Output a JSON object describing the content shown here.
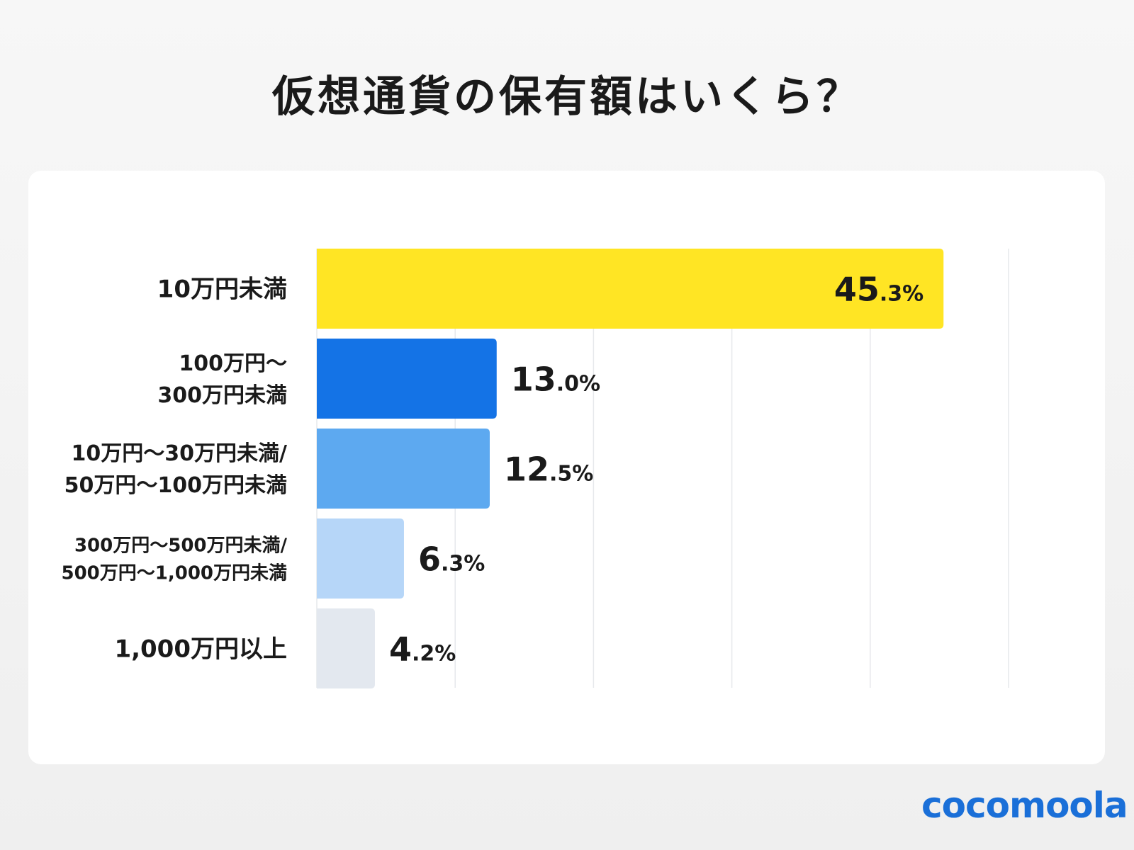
{
  "title": "仮想通貨の保有額はいくら？",
  "logo": "cocomoola",
  "chart_data": {
    "type": "bar",
    "orientation": "horizontal",
    "title": "仮想通貨の保有額はいくら？",
    "categories": [
      [
        "10万円未満"
      ],
      [
        "100万円〜",
        "300万円未満"
      ],
      [
        "10万円〜30万円未満/",
        "50万円〜100万円未満"
      ],
      [
        "300万円〜500万円未満/",
        "500万円〜1,000万円未満"
      ],
      [
        "1,000万円以上"
      ]
    ],
    "values": [
      45.3,
      13.0,
      12.5,
      6.3,
      4.2
    ],
    "value_labels": [
      [
        "45",
        ".3%"
      ],
      [
        "13",
        ".0%"
      ],
      [
        "12",
        ".5%"
      ],
      [
        "6",
        ".3%"
      ],
      [
        "4",
        ".2%"
      ]
    ],
    "colors": [
      "#ffe524",
      "#1473e6",
      "#5da9f0",
      "#b6d6f8",
      "#e3e8ef"
    ],
    "xlim": [
      0,
      50
    ],
    "grid": true,
    "grid_step": 10,
    "xlabel": "",
    "ylabel": ""
  }
}
